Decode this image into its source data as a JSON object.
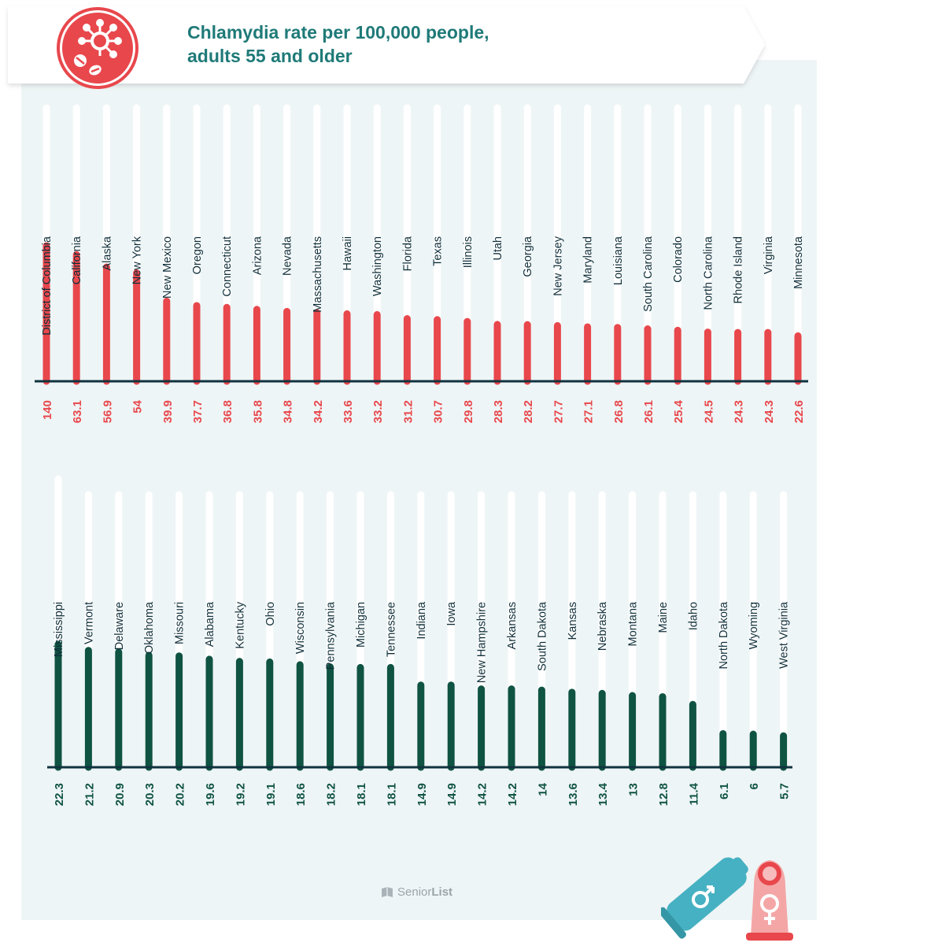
{
  "header": {
    "title_line1": "Chlamydia rate per 100,000 people,",
    "title_line2": "adults 55 and older",
    "icon": "virus-icon"
  },
  "brand": {
    "pre": "Senior",
    "post": "List",
    "icon": "book-icon"
  },
  "decorations": {
    "left": "condom-male-symbol-icon",
    "right": "condom-female-symbol-icon"
  },
  "colors": {
    "top_bars": "#e8474c",
    "bottom_bars": "#0f5343",
    "title": "#1f7a78",
    "background": "#eef5f6"
  },
  "chart_data": [
    {
      "type": "bar",
      "title": "",
      "categories": [
        "District of Columbia",
        "California",
        "Alaska",
        "New York",
        "New Mexico",
        "Oregon",
        "Connecticut",
        "Arizona",
        "Nevada",
        "Massachusetts",
        "Hawaii",
        "Washington",
        "Florida",
        "Texas",
        "Illinois",
        "Utah",
        "Georgia",
        "New Jersey",
        "Maryland",
        "Louisiana",
        "South Carolina",
        "Colorado",
        "North Carolina",
        "Rhode Island",
        "Virginia",
        "Minnesota"
      ],
      "value_labels": [
        "140",
        "63.1",
        "56.9",
        "54",
        "39.9",
        "37.7",
        "36.8",
        "35.8",
        "34.8",
        "34.2",
        "33.6",
        "33.2",
        "31.2",
        "30.7",
        "29.8",
        "28.3",
        "28.2",
        "27.7",
        "27.1",
        "26.8",
        "26.1",
        "25.4",
        "24.5",
        "24.3",
        "24.3",
        "22.6"
      ],
      "values": [
        140,
        63.1,
        56.9,
        54,
        39.9,
        37.7,
        36.8,
        35.8,
        34.8,
        34.2,
        33.6,
        33.2,
        31.2,
        30.7,
        29.8,
        28.3,
        28.2,
        27.7,
        27.1,
        26.8,
        26.1,
        25.4,
        24.5,
        24.3,
        24.3,
        22.6
      ],
      "color": "#e8474c"
    },
    {
      "type": "bar",
      "title": "",
      "categories": [
        "Mississippi",
        "Vermont",
        "Delaware",
        "Oklahoma",
        "Missouri",
        "Alabama",
        "Kentucky",
        "Ohio",
        "Wisconsin",
        "Pennsylvania",
        "Michigan",
        "Tennessee",
        "Indiana",
        "Iowa",
        "New Hampshire",
        "Arkansas",
        "South Dakota",
        "Kansas",
        "Nebraska",
        "Montana",
        "Maine",
        "Idaho",
        "North Dakota",
        "Wyoming",
        "West Virginia"
      ],
      "value_labels": [
        "22.3",
        "21.2",
        "20.9",
        "20.3",
        "20.2",
        "19.6",
        "19.2",
        "19.1",
        "18.6",
        "18.2",
        "18.1",
        "18.1",
        "14.9",
        "14.9",
        "14.2",
        "14.2",
        "14",
        "13.6",
        "13.4",
        "13",
        "12.8",
        "11.4",
        "6.1",
        "6",
        "5.7"
      ],
      "values": [
        22.3,
        21.2,
        20.9,
        20.3,
        20.2,
        19.6,
        19.2,
        19.1,
        18.6,
        18.2,
        18.1,
        18.1,
        14.9,
        14.9,
        14.2,
        14.2,
        14,
        13.6,
        13.4,
        13,
        12.8,
        11.4,
        6.1,
        6,
        5.7
      ],
      "color": "#0f5343"
    }
  ]
}
